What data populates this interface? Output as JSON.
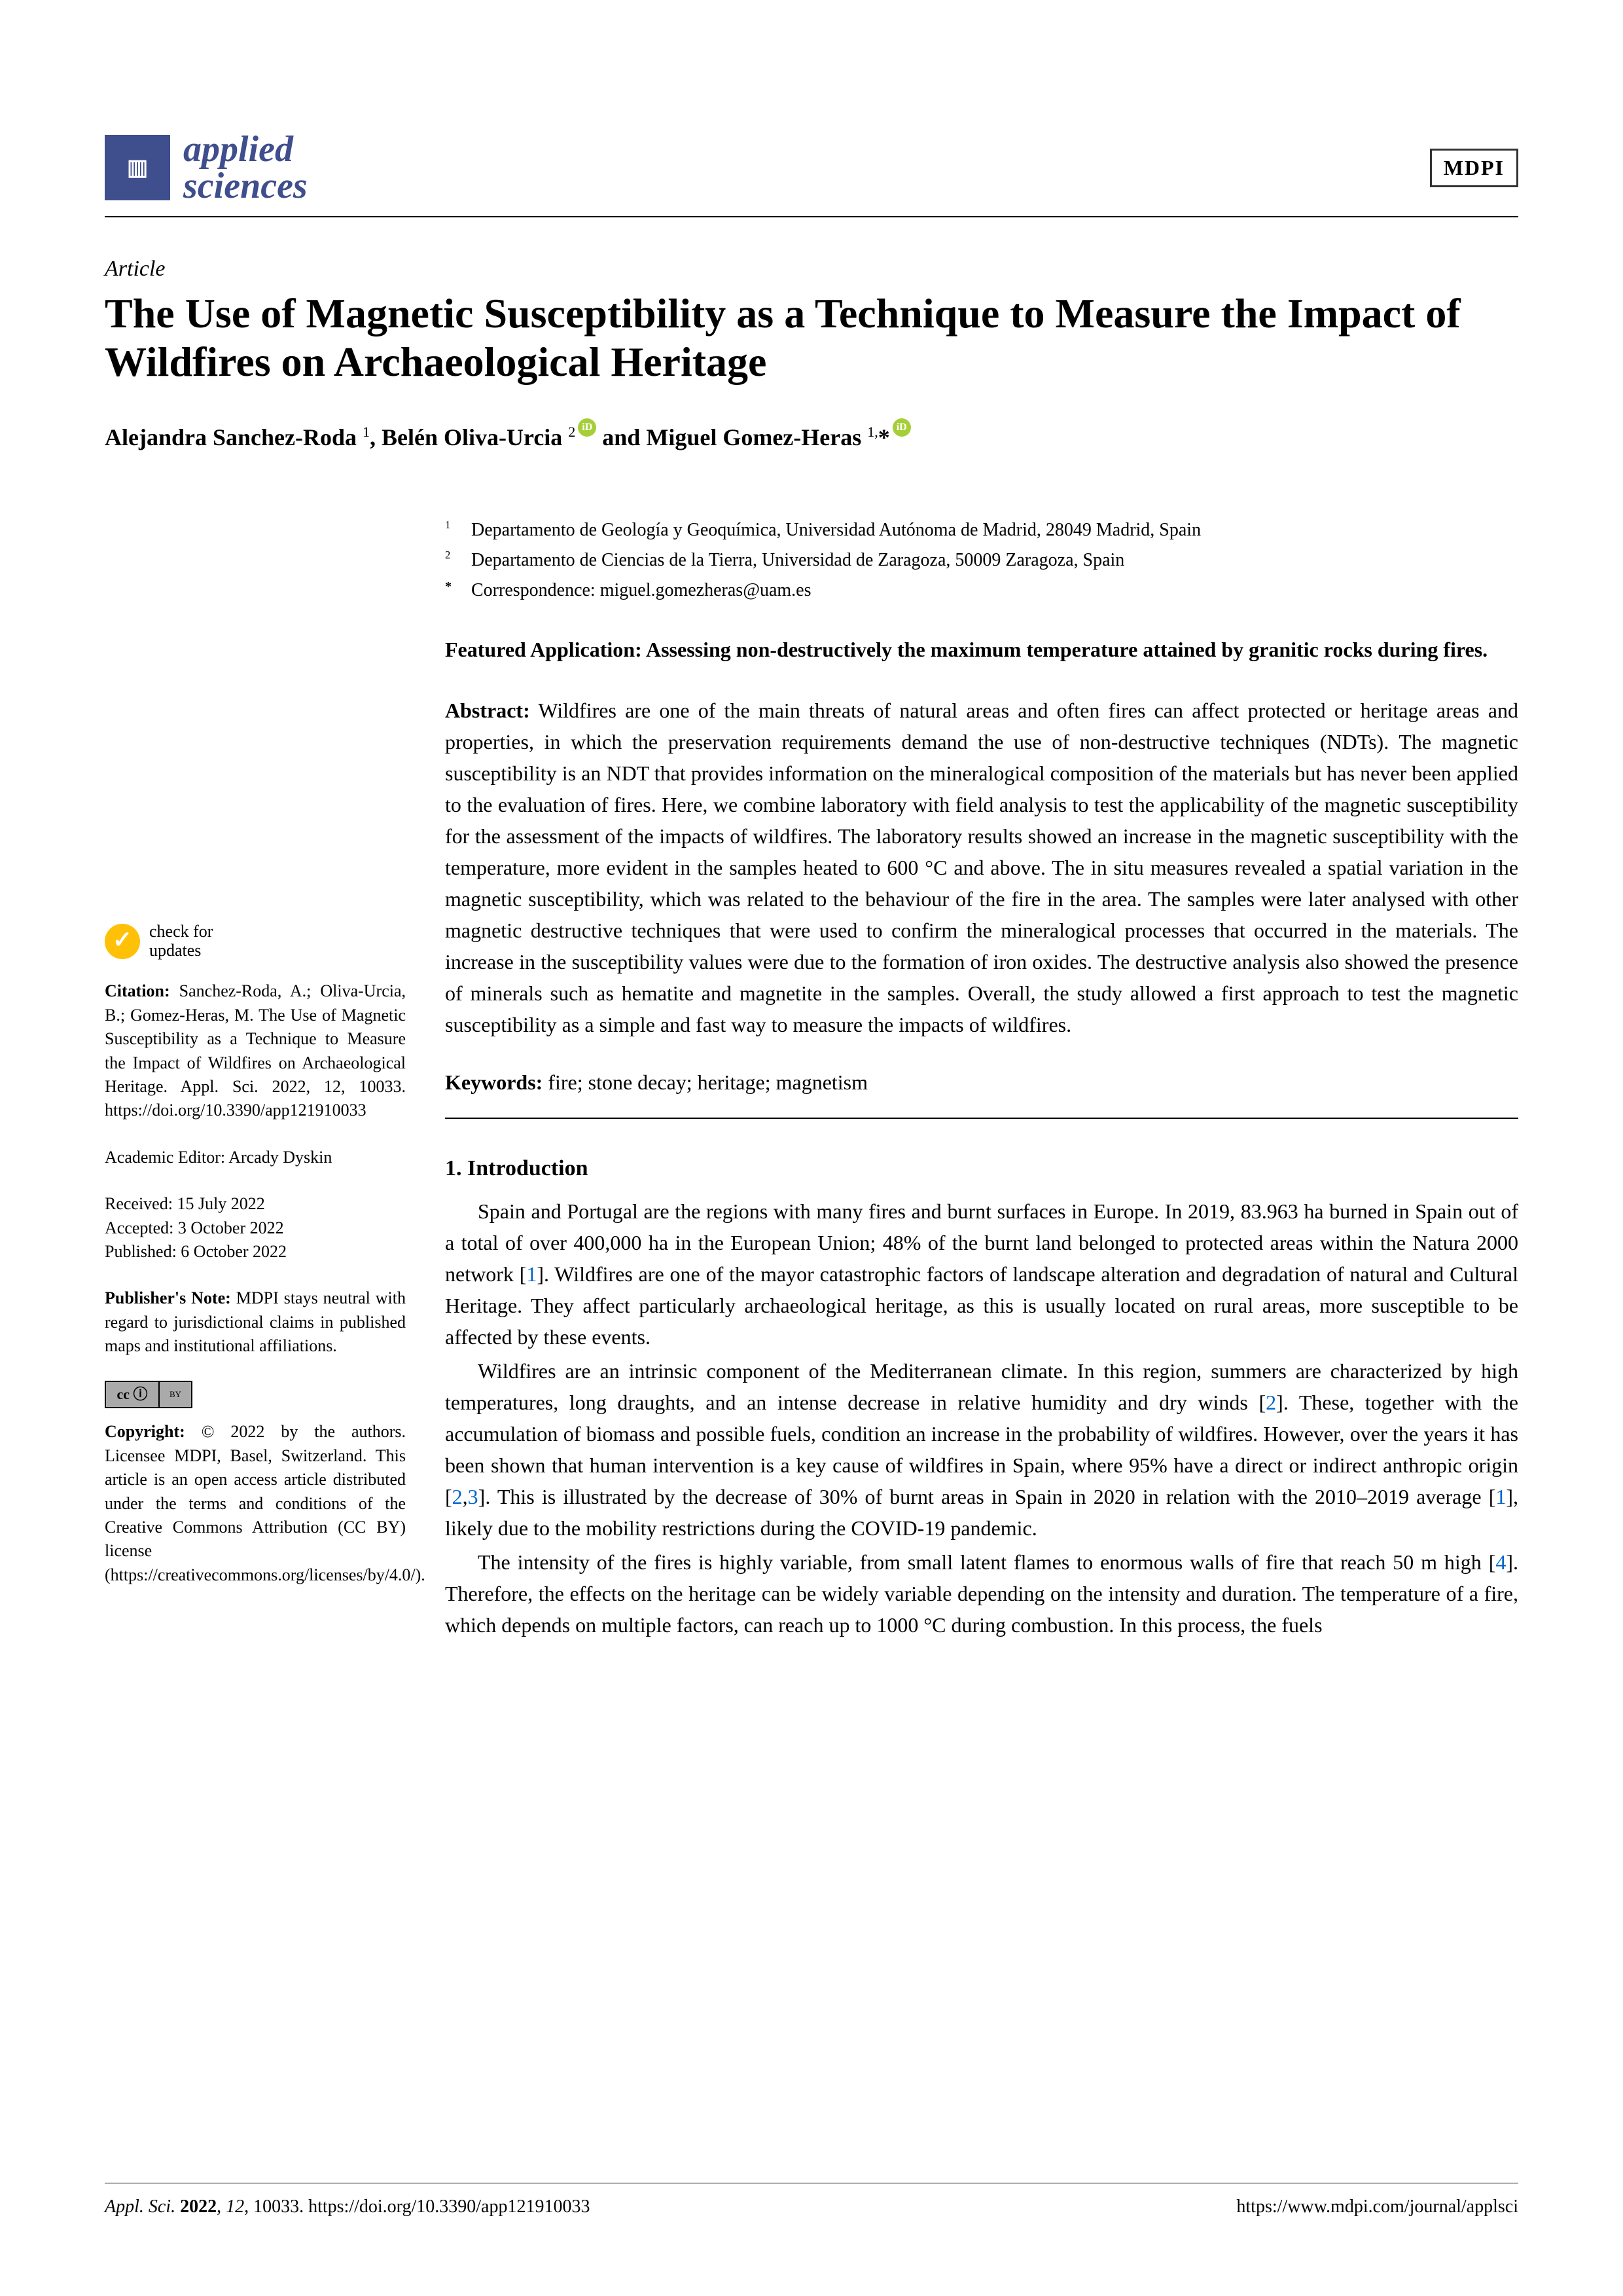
{
  "header": {
    "journal_name_line1": "applied",
    "journal_name_line2": "sciences",
    "publisher_logo": "MDPI"
  },
  "article": {
    "type": "Article",
    "title": "The Use of Magnetic Susceptibility as a Technique to Measure the Impact of Wildfires on Archaeological Heritage",
    "authors_html": "Alejandra Sanchez-Roda ¹, Belén Oliva-Urcia ² and Miguel Gomez-Heras ¹,*"
  },
  "affiliations": {
    "a1": "Departamento de Geología y Geoquímica, Universidad Autónoma de Madrid, 28049 Madrid, Spain",
    "a2": "Departamento de Ciencias de la Tierra, Universidad de Zaragoza, 50009 Zaragoza, Spain",
    "corr": "Correspondence: miguel.gomezheras@uam.es"
  },
  "featured": "Featured Application: Assessing non-destructively the maximum temperature attained by granitic rocks during fires.",
  "abstract_label": "Abstract:",
  "abstract": "Wildfires are one of the main threats of natural areas and often fires can affect protected or heritage areas and properties, in which the preservation requirements demand the use of non-destructive techniques (NDTs). The magnetic susceptibility is an NDT that provides information on the mineralogical composition of the materials but has never been applied to the evaluation of fires. Here, we combine laboratory with field analysis to test the applicability of the magnetic susceptibility for the assessment of the impacts of wildfires. The laboratory results showed an increase in the magnetic susceptibility with the temperature, more evident in the samples heated to 600 °C and above. The in situ measures revealed a spatial variation in the magnetic susceptibility, which was related to the behaviour of the fire in the area. The samples were later analysed with other magnetic destructive techniques that were used to confirm the mineralogical processes that occurred in the materials. The increase in the susceptibility values were due to the formation of iron oxides. The destructive analysis also showed the presence of minerals such as hematite and magnetite in the samples. Overall, the study allowed a first approach to test the magnetic susceptibility as a simple and fast way to measure the impacts of wildfires.",
  "keywords_label": "Keywords:",
  "keywords": "fire; stone decay; heritage; magnetism",
  "section1_heading": "1. Introduction",
  "para1": "Spain and Portugal are the regions with many fires and burnt surfaces in Europe. In 2019, 83.963 ha burned in Spain out of a total of over 400,000 ha in the European Union; 48% of the burnt land belonged to protected areas within the Natura 2000 network [1]. Wildfires are one of the mayor catastrophic factors of landscape alteration and degradation of natural and Cultural Heritage. They affect particularly archaeological heritage, as this is usually located on rural areas, more susceptible to be affected by these events.",
  "para2": "Wildfires are an intrinsic component of the Mediterranean climate. In this region, summers are characterized by high temperatures, long draughts, and an intense decrease in relative humidity and dry winds [2]. These, together with the accumulation of biomass and possible fuels, condition an increase in the probability of wildfires. However, over the years it has been shown that human intervention is a key cause of wildfires in Spain, where 95% have a direct or indirect anthropic origin [2,3]. This is illustrated by the decrease of 30% of burnt areas in Spain in 2020 in relation with the 2010–2019 average [1], likely due to the mobility restrictions during the COVID-19 pandemic.",
  "para3": "The intensity of the fires is highly variable, from small latent flames to enormous walls of fire that reach 50 m high [4]. Therefore, the effects on the heritage can be widely variable depending on the intensity and duration. The temperature of a fire, which depends on multiple factors, can reach up to 1000 °C during combustion. In this process, the fuels",
  "sidebar": {
    "check_updates": "check for updates",
    "citation_label": "Citation:",
    "citation": "Sanchez-Roda, A.; Oliva-Urcia, B.; Gomez-Heras, M. The Use of Magnetic Susceptibility as a Technique to Measure the Impact of Wildfires on Archaeological Heritage. Appl. Sci. 2022, 12, 10033. https://doi.org/10.3390/app121910033",
    "editor_label": "Academic Editor:",
    "editor": "Arcady Dyskin",
    "received": "Received: 15 July 2022",
    "accepted": "Accepted: 3 October 2022",
    "published": "Published: 6 October 2022",
    "pubnote_label": "Publisher's Note:",
    "pubnote": "MDPI stays neutral with regard to jurisdictional claims in published maps and institutional affiliations.",
    "copyright_label": "Copyright:",
    "copyright": "© 2022 by the authors. Licensee MDPI, Basel, Switzerland. This article is an open access article distributed under the terms and conditions of the Creative Commons Attribution (CC BY) license (https://creativecommons.org/licenses/by/4.0/)."
  },
  "footer": {
    "left": "Appl. Sci. 2022, 12, 10033. https://doi.org/10.3390/app121910033",
    "right": "https://www.mdpi.com/journal/applsci"
  },
  "colors": {
    "journal_brand": "#3f4e8c",
    "link": "#0066cc",
    "orcid": "#a6ce39",
    "check": "#ffc107"
  }
}
